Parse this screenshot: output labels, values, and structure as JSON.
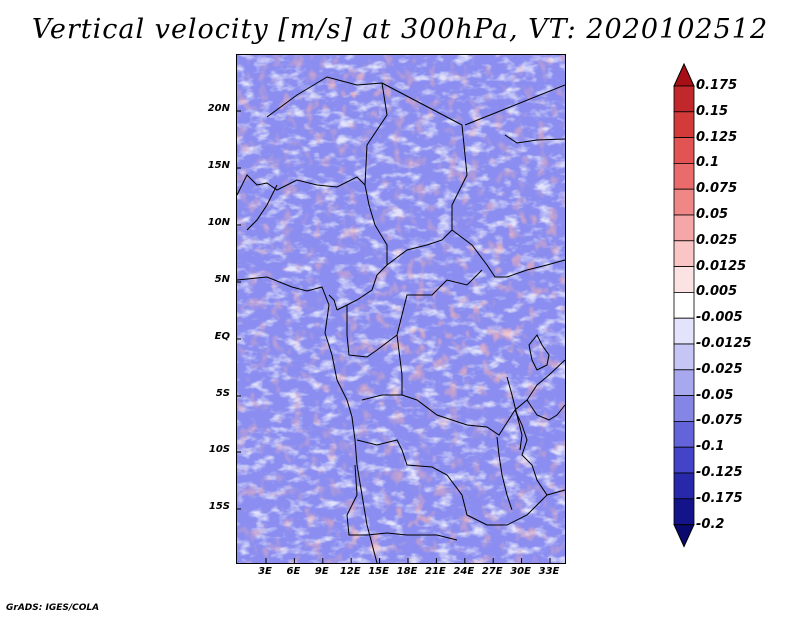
{
  "title": "Vertical velocity [m/s] at 300hPa, VT: 2020102512",
  "credit": "GrADS: IGES/COLA",
  "lat_labels": [
    "20N",
    "15N",
    "10N",
    "5N",
    "EQ",
    "5S",
    "10S",
    "15S"
  ],
  "lon_labels": [
    "3E",
    "6E",
    "9E",
    "12E",
    "15E",
    "18E",
    "21E",
    "24E",
    "27E",
    "30E",
    "33E"
  ],
  "colorbar": {
    "levels": [
      "0.175",
      "0.15",
      "0.125",
      "0.1",
      "0.075",
      "0.05",
      "0.025",
      "0.0125",
      "0.005",
      "-0.005",
      "-0.0125",
      "-0.025",
      "-0.05",
      "-0.075",
      "-0.1",
      "-0.125",
      "-0.175",
      "-0.2"
    ],
    "colors": [
      "#a50f15",
      "#c0282c",
      "#d33b3b",
      "#e25454",
      "#ea6b6b",
      "#f08787",
      "#f5a6a6",
      "#f9c5c5",
      "#fce3e3",
      "#ffffff",
      "#e3e3fb",
      "#c6c6f6",
      "#a8a8ef",
      "#8585e6",
      "#6464da",
      "#4444c8",
      "#2828aa",
      "#14148a",
      "#0a0a6e"
    ]
  },
  "map": {
    "region": "Central Africa",
    "lon_range": [
      0,
      35
    ],
    "lat_range": [
      -19,
      24.5
    ],
    "field_colors": {
      "background": "#8b8ef0",
      "positive": "#e88a8a",
      "strong_positive": "#c23030",
      "neutral": "#f3f3fb",
      "strong_negative": "#3a3ad0"
    }
  }
}
